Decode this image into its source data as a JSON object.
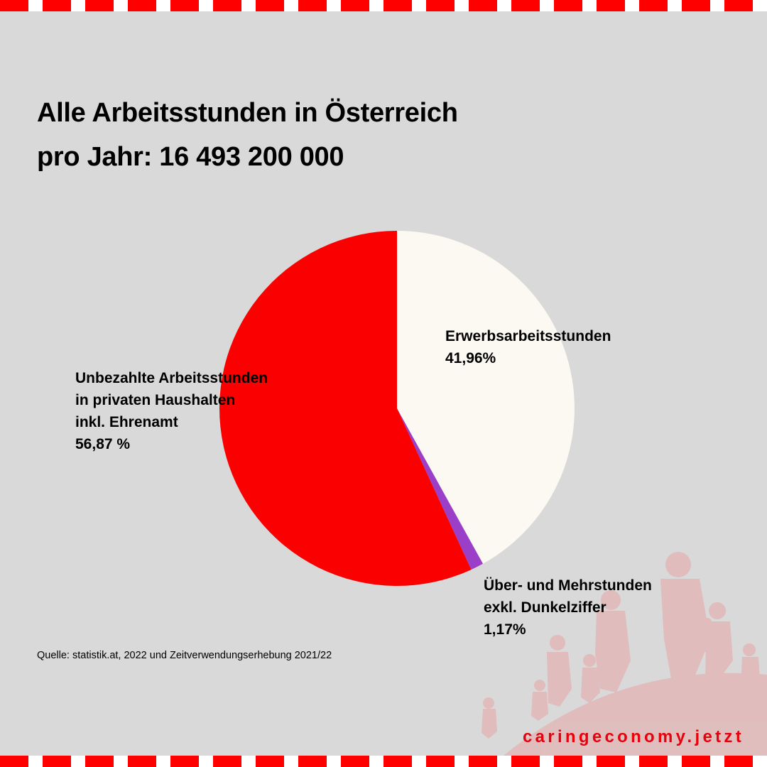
{
  "title": {
    "line1": "Alle Arbeitsstunden in Österreich",
    "line2": "pro Jahr: 16 493 200 000"
  },
  "chart_data": {
    "type": "pie",
    "title": "Alle Arbeitsstunden in Österreich pro Jahr: 16 493 200 000",
    "slices": [
      {
        "key": "paid",
        "name": "Erwerbsarbeitsstunden",
        "value": 41.96,
        "label_lines": [
          "Erwerbsarbeitsstunden"
        ],
        "value_text": "41,96%",
        "color": "#fcf9f3"
      },
      {
        "key": "overtime",
        "name": "Über- und Mehrstunden exkl. Dunkelziffer",
        "value": 1.17,
        "label_lines": [
          "Über- und Mehrstunden",
          "exkl. Dunkelziffer"
        ],
        "value_text": "1,17%",
        "color": "#9b3fc9"
      },
      {
        "key": "unpaid",
        "name": "Unbezahlte Arbeitsstunden in privaten Haushalten inkl. Ehrenamt",
        "value": 56.87,
        "label_lines": [
          "Unbezahlte Arbeitsstunden",
          "in privaten Haushalten",
          "inkl. Ehrenamt"
        ],
        "value_text": "56,87 %",
        "color": "#fb0000"
      }
    ],
    "start_angle": "12 o'clock",
    "direction": "clockwise"
  },
  "source": "Quelle: statistik.at, 2022 und Zeitverwendungserhebung 2021/22",
  "brand": "caringeconomy.jetzt",
  "colors": {
    "background": "#d9d9d9",
    "accent_red": "#ff0000",
    "brand_text": "#e8000b",
    "decoration": "#e2b8b8"
  }
}
